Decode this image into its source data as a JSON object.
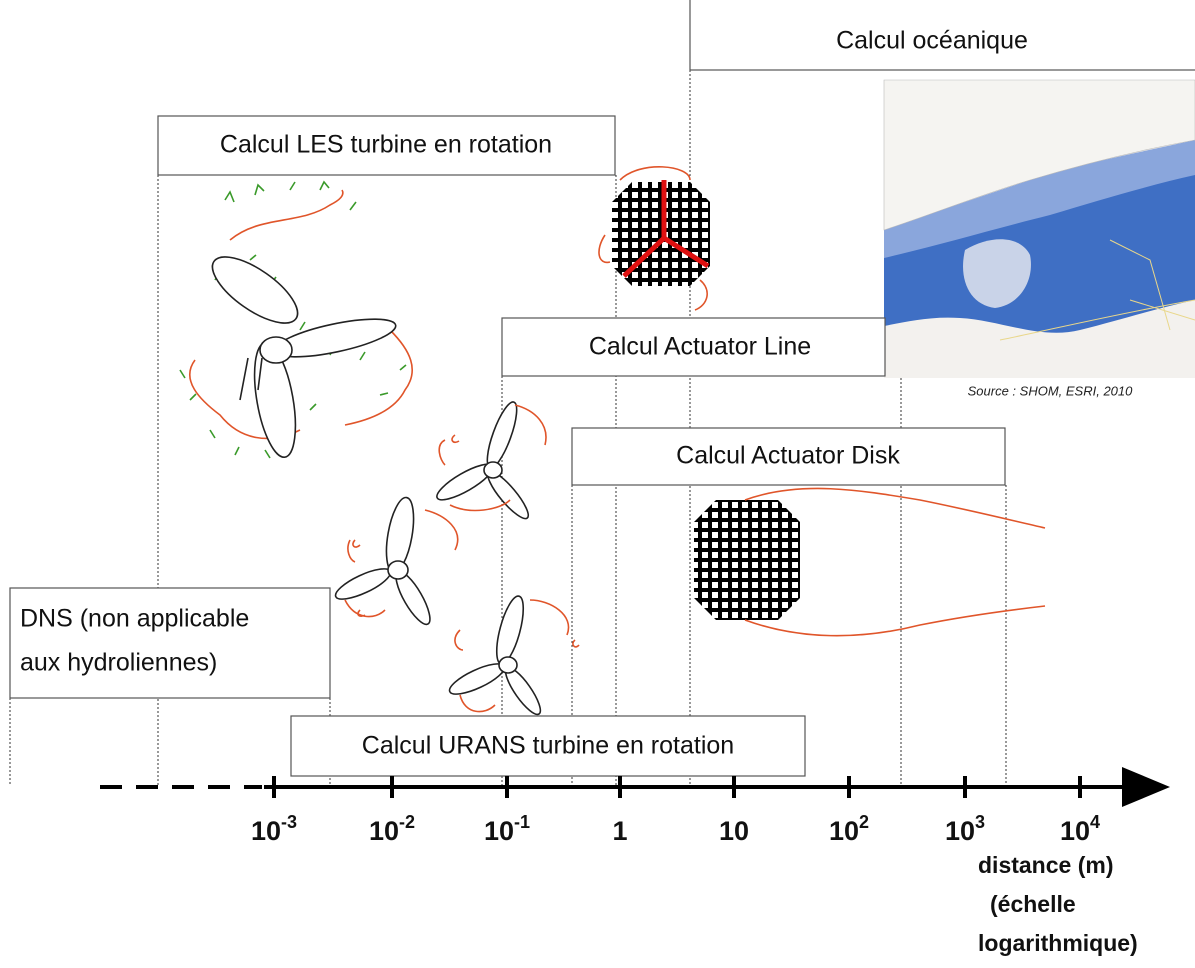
{
  "boxes": {
    "oceanic": "Calcul océanique",
    "les": "Calcul LES turbine en rotation",
    "actuator_line": "Calcul Actuator Line",
    "actuator_disk": "Calcul Actuator Disk",
    "dns": [
      "DNS (non applicable",
      "aux hydroliennes)"
    ],
    "urans": "Calcul URANS turbine en rotation"
  },
  "map_source": "Source : SHOM, ESRI, 2010",
  "axis": {
    "ticks": [
      {
        "base": "10",
        "exp": "-3"
      },
      {
        "base": "10",
        "exp": "-2"
      },
      {
        "base": "10",
        "exp": "-1"
      },
      {
        "base": "1"
      },
      {
        "base": "10"
      },
      {
        "base": "10",
        "exp": "2"
      },
      {
        "base": "10",
        "exp": "3"
      },
      {
        "base": "10",
        "exp": "4"
      }
    ],
    "label": [
      "distance (m)",
      "(échelle",
      "logarithmique)"
    ]
  }
}
